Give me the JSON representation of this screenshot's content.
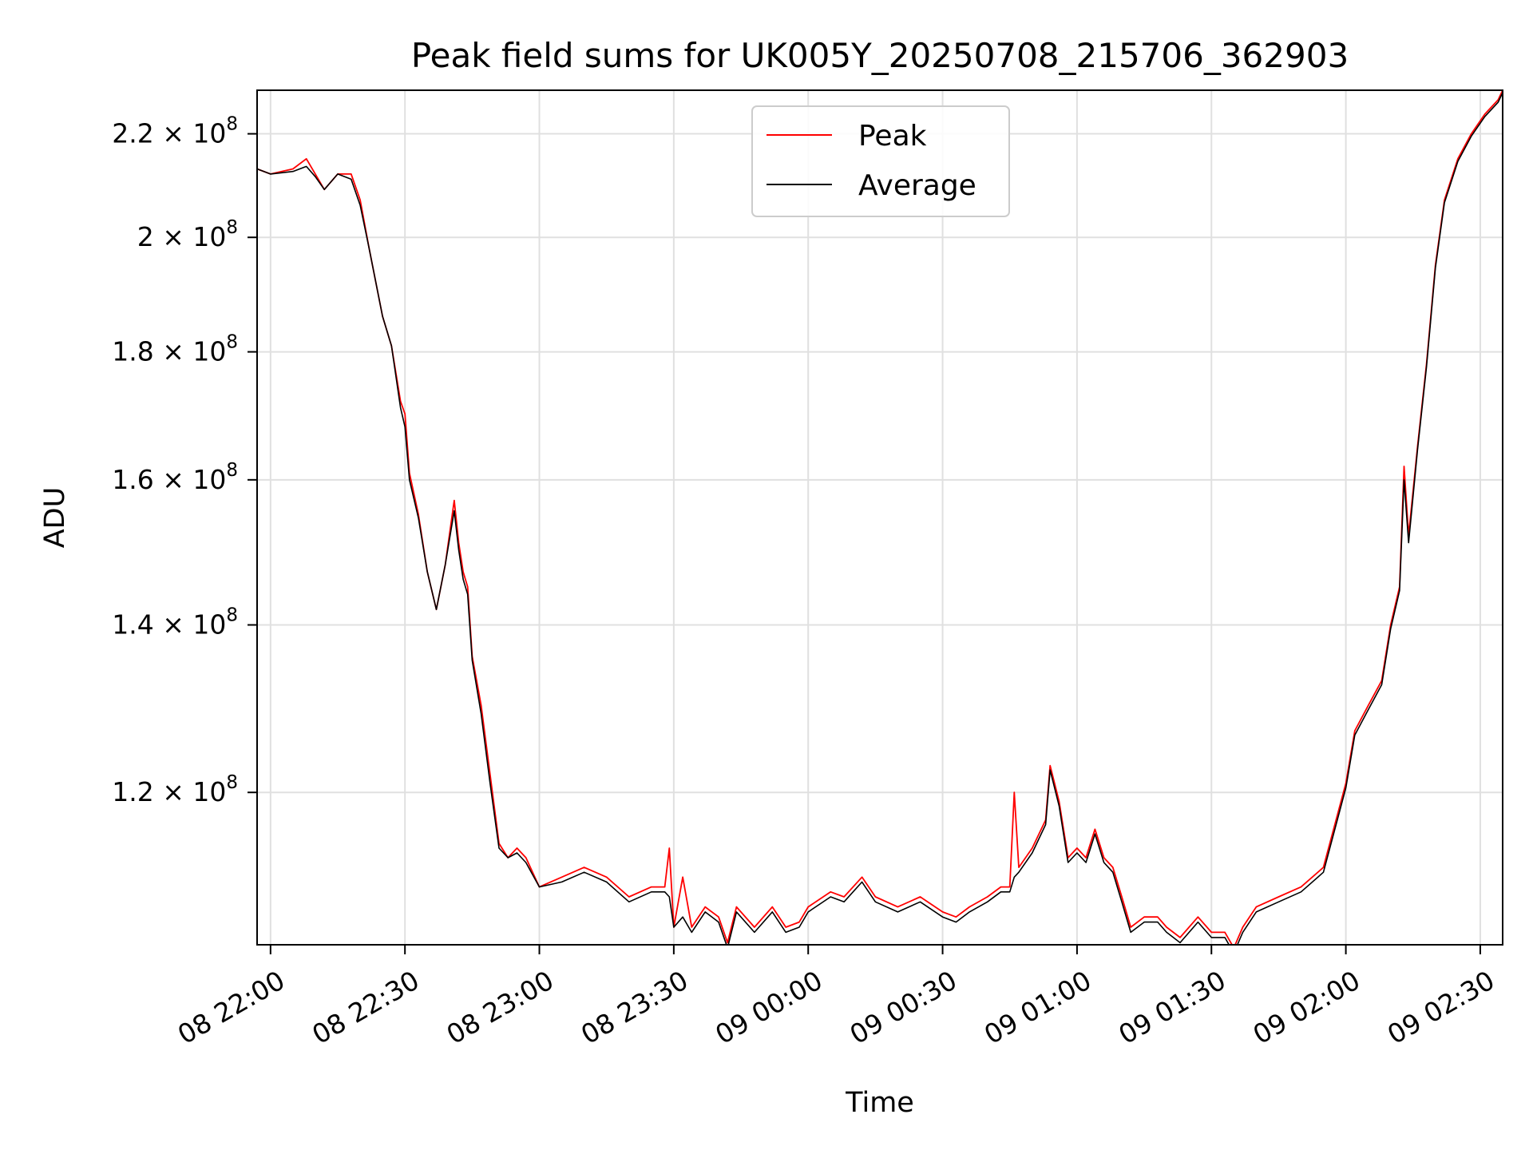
{
  "chart_data": {
    "type": "line",
    "title": "Peak field sums for UK005Y_20250708_215706_362903",
    "xlabel": "Time",
    "ylabel": "ADU",
    "yscale": "log",
    "grid": true,
    "legend_position": "top-center",
    "x_range": [
      "2025-07-08 21:57",
      "2025-07-09 02:35"
    ],
    "ylim": [
      104300000.0,
      229000000.0
    ],
    "x_ticks": [
      {
        "time": "2025-07-08 22:00",
        "label": "08 22:00"
      },
      {
        "time": "2025-07-08 22:30",
        "label": "08 22:30"
      },
      {
        "time": "2025-07-08 23:00",
        "label": "08 23:00"
      },
      {
        "time": "2025-07-08 23:30",
        "label": "08 23:30"
      },
      {
        "time": "2025-07-09 00:00",
        "label": "09 00:00"
      },
      {
        "time": "2025-07-09 00:30",
        "label": "09 00:30"
      },
      {
        "time": "2025-07-09 01:00",
        "label": "09 01:00"
      },
      {
        "time": "2025-07-09 01:30",
        "label": "09 01:30"
      },
      {
        "time": "2025-07-09 02:00",
        "label": "09 02:00"
      },
      {
        "time": "2025-07-09 02:30",
        "label": "09 02:30"
      }
    ],
    "y_ticks": [
      {
        "value": 120000000.0,
        "mantissa": "1.2",
        "exponent": "8"
      },
      {
        "value": 140000000.0,
        "mantissa": "1.4",
        "exponent": "8"
      },
      {
        "value": 160000000.0,
        "mantissa": "1.6",
        "exponent": "8"
      },
      {
        "value": 180000000.0,
        "mantissa": "1.8",
        "exponent": "8"
      },
      {
        "value": 200000000.0,
        "mantissa": "2",
        "exponent": "8"
      },
      {
        "value": 220000000.0,
        "mantissa": "2.2",
        "exponent": "8"
      }
    ],
    "series": [
      {
        "name": "Peak",
        "color": "#ff0000",
        "points": [
          [
            "2025-07-08 21:57",
            213000000.0
          ],
          [
            "2025-07-08 22:00",
            212000000.0
          ],
          [
            "2025-07-08 22:05",
            213000000.0
          ],
          [
            "2025-07-08 22:08",
            215000000.0
          ],
          [
            "2025-07-08 22:10",
            212000000.0
          ],
          [
            "2025-07-08 22:12",
            209000000.0
          ],
          [
            "2025-07-08 22:15",
            212000000.0
          ],
          [
            "2025-07-08 22:18",
            212000000.0
          ],
          [
            "2025-07-08 22:20",
            207000000.0
          ],
          [
            "2025-07-08 22:22",
            198000000.0
          ],
          [
            "2025-07-08 22:25",
            186000000.0
          ],
          [
            "2025-07-08 22:27",
            181000000.0
          ],
          [
            "2025-07-08 22:29",
            172000000.0
          ],
          [
            "2025-07-08 22:30",
            170000000.0
          ],
          [
            "2025-07-08 22:31",
            161000000.0
          ],
          [
            "2025-07-08 22:33",
            155000000.0
          ],
          [
            "2025-07-08 22:35",
            147000000.0
          ],
          [
            "2025-07-08 22:37",
            142000000.0
          ],
          [
            "2025-07-08 22:39",
            148000000.0
          ],
          [
            "2025-07-08 22:41",
            157000000.0
          ],
          [
            "2025-07-08 22:42",
            151000000.0
          ],
          [
            "2025-07-08 22:43",
            147000000.0
          ],
          [
            "2025-07-08 22:44",
            145000000.0
          ],
          [
            "2025-07-08 22:45",
            136000000.0
          ],
          [
            "2025-07-08 22:47",
            130000000.0
          ],
          [
            "2025-07-08 22:49",
            122000000.0
          ],
          [
            "2025-07-08 22:51",
            114500000.0
          ],
          [
            "2025-07-08 22:53",
            113000000.0
          ],
          [
            "2025-07-08 22:55",
            114000000.0
          ],
          [
            "2025-07-08 22:57",
            113000000.0
          ],
          [
            "2025-07-08 23:00",
            110000000.0
          ],
          [
            "2025-07-08 23:05",
            111000000.0
          ],
          [
            "2025-07-08 23:10",
            112000000.0
          ],
          [
            "2025-07-08 23:15",
            111000000.0
          ],
          [
            "2025-07-08 23:20",
            109000000.0
          ],
          [
            "2025-07-08 23:25",
            110000000.0
          ],
          [
            "2025-07-08 23:28",
            110000000.0
          ],
          [
            "2025-07-08 23:29",
            114000000.0
          ],
          [
            "2025-07-08 23:30",
            106000000.0
          ],
          [
            "2025-07-08 23:32",
            111000000.0
          ],
          [
            "2025-07-08 23:34",
            106000000.0
          ],
          [
            "2025-07-08 23:37",
            108000000.0
          ],
          [
            "2025-07-08 23:40",
            107000000.0
          ],
          [
            "2025-07-08 23:42",
            104500000.0
          ],
          [
            "2025-07-08 23:44",
            108000000.0
          ],
          [
            "2025-07-08 23:48",
            106000000.0
          ],
          [
            "2025-07-08 23:52",
            108000000.0
          ],
          [
            "2025-07-08 23:55",
            106000000.0
          ],
          [
            "2025-07-08 23:58",
            106500000.0
          ],
          [
            "2025-07-09 00:00",
            108000000.0
          ],
          [
            "2025-07-09 00:05",
            109500000.0
          ],
          [
            "2025-07-09 00:08",
            109000000.0
          ],
          [
            "2025-07-09 00:12",
            111000000.0
          ],
          [
            "2025-07-09 00:15",
            109000000.0
          ],
          [
            "2025-07-09 00:20",
            108000000.0
          ],
          [
            "2025-07-09 00:25",
            109000000.0
          ],
          [
            "2025-07-09 00:30",
            107500000.0
          ],
          [
            "2025-07-09 00:33",
            107000000.0
          ],
          [
            "2025-07-09 00:36",
            108000000.0
          ],
          [
            "2025-07-09 00:40",
            109000000.0
          ],
          [
            "2025-07-09 00:43",
            110000000.0
          ],
          [
            "2025-07-09 00:45",
            110000000.0
          ],
          [
            "2025-07-09 00:46",
            120000000.0
          ],
          [
            "2025-07-09 00:47",
            112000000.0
          ],
          [
            "2025-07-09 00:50",
            114000000.0
          ],
          [
            "2025-07-09 00:53",
            117000000.0
          ],
          [
            "2025-07-09 00:54",
            123000000.0
          ],
          [
            "2025-07-09 00:56",
            119000000.0
          ],
          [
            "2025-07-09 00:58",
            113000000.0
          ],
          [
            "2025-07-09 01:00",
            114000000.0
          ],
          [
            "2025-07-09 01:02",
            113000000.0
          ],
          [
            "2025-07-09 01:04",
            116000000.0
          ],
          [
            "2025-07-09 01:06",
            113000000.0
          ],
          [
            "2025-07-09 01:08",
            112000000.0
          ],
          [
            "2025-07-09 01:10",
            109000000.0
          ],
          [
            "2025-07-09 01:12",
            106000000.0
          ],
          [
            "2025-07-09 01:15",
            107000000.0
          ],
          [
            "2025-07-09 01:18",
            107000000.0
          ],
          [
            "2025-07-09 01:20",
            106000000.0
          ],
          [
            "2025-07-09 01:23",
            105000000.0
          ],
          [
            "2025-07-09 01:27",
            107000000.0
          ],
          [
            "2025-07-09 01:30",
            105500000.0
          ],
          [
            "2025-07-09 01:33",
            105500000.0
          ],
          [
            "2025-07-09 01:35",
            104000000.0
          ],
          [
            "2025-07-09 01:37",
            106000000.0
          ],
          [
            "2025-07-09 01:40",
            108000000.0
          ],
          [
            "2025-07-09 01:45",
            109000000.0
          ],
          [
            "2025-07-09 01:50",
            110000000.0
          ],
          [
            "2025-07-09 01:55",
            112000000.0
          ],
          [
            "2025-07-09 02:00",
            121000000.0
          ],
          [
            "2025-07-09 02:02",
            127000000.0
          ],
          [
            "2025-07-09 02:05",
            130000000.0
          ],
          [
            "2025-07-09 02:08",
            133000000.0
          ],
          [
            "2025-07-09 02:10",
            140000000.0
          ],
          [
            "2025-07-09 02:12",
            145000000.0
          ],
          [
            "2025-07-09 02:13",
            162000000.0
          ],
          [
            "2025-07-09 02:14",
            152000000.0
          ],
          [
            "2025-07-09 02:16",
            165000000.0
          ],
          [
            "2025-07-09 02:18",
            178000000.0
          ],
          [
            "2025-07-09 02:20",
            195000000.0
          ],
          [
            "2025-07-09 02:22",
            207000000.0
          ],
          [
            "2025-07-09 02:25",
            215000000.0
          ],
          [
            "2025-07-09 02:28",
            220000000.0
          ],
          [
            "2025-07-09 02:31",
            224000000.0
          ],
          [
            "2025-07-09 02:34",
            227000000.0
          ],
          [
            "2025-07-09 02:35",
            229000000.0
          ]
        ]
      },
      {
        "name": "Average",
        "color": "#000000",
        "points": [
          [
            "2025-07-08 21:57",
            213000000.0
          ],
          [
            "2025-07-08 22:00",
            212000000.0
          ],
          [
            "2025-07-08 22:05",
            212500000.0
          ],
          [
            "2025-07-08 22:08",
            213500000.0
          ],
          [
            "2025-07-08 22:10",
            211500000.0
          ],
          [
            "2025-07-08 22:12",
            209000000.0
          ],
          [
            "2025-07-08 22:15",
            212000000.0
          ],
          [
            "2025-07-08 22:18",
            211000000.0
          ],
          [
            "2025-07-08 22:20",
            206000000.0
          ],
          [
            "2025-07-08 22:22",
            198000000.0
          ],
          [
            "2025-07-08 22:25",
            186000000.0
          ],
          [
            "2025-07-08 22:27",
            181000000.0
          ],
          [
            "2025-07-08 22:29",
            171000000.0
          ],
          [
            "2025-07-08 22:30",
            168000000.0
          ],
          [
            "2025-07-08 22:31",
            160000000.0
          ],
          [
            "2025-07-08 22:33",
            154500000.0
          ],
          [
            "2025-07-08 22:35",
            147000000.0
          ],
          [
            "2025-07-08 22:37",
            142000000.0
          ],
          [
            "2025-07-08 22:39",
            148000000.0
          ],
          [
            "2025-07-08 22:41",
            155500000.0
          ],
          [
            "2025-07-08 22:42",
            150000000.0
          ],
          [
            "2025-07-08 22:43",
            146000000.0
          ],
          [
            "2025-07-08 22:44",
            144000000.0
          ],
          [
            "2025-07-08 22:45",
            135500000.0
          ],
          [
            "2025-07-08 22:47",
            129000000.0
          ],
          [
            "2025-07-08 22:49",
            121000000.0
          ],
          [
            "2025-07-08 22:51",
            114000000.0
          ],
          [
            "2025-07-08 22:53",
            113000000.0
          ],
          [
            "2025-07-08 22:55",
            113500000.0
          ],
          [
            "2025-07-08 22:57",
            112500000.0
          ],
          [
            "2025-07-08 23:00",
            110000000.0
          ],
          [
            "2025-07-08 23:05",
            110500000.0
          ],
          [
            "2025-07-08 23:10",
            111500000.0
          ],
          [
            "2025-07-08 23:15",
            110500000.0
          ],
          [
            "2025-07-08 23:20",
            108500000.0
          ],
          [
            "2025-07-08 23:25",
            109500000.0
          ],
          [
            "2025-07-08 23:28",
            109500000.0
          ],
          [
            "2025-07-08 23:29",
            109000000.0
          ],
          [
            "2025-07-08 23:30",
            106000000.0
          ],
          [
            "2025-07-08 23:32",
            107000000.0
          ],
          [
            "2025-07-08 23:34",
            105500000.0
          ],
          [
            "2025-07-08 23:37",
            107500000.0
          ],
          [
            "2025-07-08 23:40",
            106500000.0
          ],
          [
            "2025-07-08 23:42",
            104000000.0
          ],
          [
            "2025-07-08 23:44",
            107500000.0
          ],
          [
            "2025-07-08 23:48",
            105500000.0
          ],
          [
            "2025-07-08 23:52",
            107500000.0
          ],
          [
            "2025-07-08 23:55",
            105500000.0
          ],
          [
            "2025-07-08 23:58",
            106000000.0
          ],
          [
            "2025-07-09 00:00",
            107500000.0
          ],
          [
            "2025-07-09 00:05",
            109000000.0
          ],
          [
            "2025-07-09 00:08",
            108500000.0
          ],
          [
            "2025-07-09 00:12",
            110500000.0
          ],
          [
            "2025-07-09 00:15",
            108500000.0
          ],
          [
            "2025-07-09 00:20",
            107500000.0
          ],
          [
            "2025-07-09 00:25",
            108500000.0
          ],
          [
            "2025-07-09 00:30",
            107000000.0
          ],
          [
            "2025-07-09 00:33",
            106500000.0
          ],
          [
            "2025-07-09 00:36",
            107500000.0
          ],
          [
            "2025-07-09 00:40",
            108500000.0
          ],
          [
            "2025-07-09 00:43",
            109500000.0
          ],
          [
            "2025-07-09 00:45",
            109500000.0
          ],
          [
            "2025-07-09 00:46",
            111000000.0
          ],
          [
            "2025-07-09 00:47",
            111500000.0
          ],
          [
            "2025-07-09 00:50",
            113500000.0
          ],
          [
            "2025-07-09 00:53",
            116500000.0
          ],
          [
            "2025-07-09 00:54",
            122500000.0
          ],
          [
            "2025-07-09 00:56",
            118500000.0
          ],
          [
            "2025-07-09 00:58",
            112500000.0
          ],
          [
            "2025-07-09 01:00",
            113500000.0
          ],
          [
            "2025-07-09 01:02",
            112500000.0
          ],
          [
            "2025-07-09 01:04",
            115500000.0
          ],
          [
            "2025-07-09 01:06",
            112500000.0
          ],
          [
            "2025-07-09 01:08",
            111500000.0
          ],
          [
            "2025-07-09 01:10",
            108500000.0
          ],
          [
            "2025-07-09 01:12",
            105500000.0
          ],
          [
            "2025-07-09 01:15",
            106500000.0
          ],
          [
            "2025-07-09 01:18",
            106500000.0
          ],
          [
            "2025-07-09 01:20",
            105500000.0
          ],
          [
            "2025-07-09 01:23",
            104500000.0
          ],
          [
            "2025-07-09 01:27",
            106500000.0
          ],
          [
            "2025-07-09 01:30",
            105000000.0
          ],
          [
            "2025-07-09 01:33",
            105000000.0
          ],
          [
            "2025-07-09 01:35",
            103500000.0
          ],
          [
            "2025-07-09 01:37",
            105500000.0
          ],
          [
            "2025-07-09 01:40",
            107500000.0
          ],
          [
            "2025-07-09 01:45",
            108500000.0
          ],
          [
            "2025-07-09 01:50",
            109500000.0
          ],
          [
            "2025-07-09 01:55",
            111500000.0
          ],
          [
            "2025-07-09 02:00",
            120500000.0
          ],
          [
            "2025-07-09 02:02",
            126500000.0
          ],
          [
            "2025-07-09 02:05",
            129500000.0
          ],
          [
            "2025-07-09 02:08",
            132500000.0
          ],
          [
            "2025-07-09 02:10",
            139500000.0
          ],
          [
            "2025-07-09 02:12",
            144500000.0
          ],
          [
            "2025-07-09 02:13",
            160000000.0
          ],
          [
            "2025-07-09 02:14",
            151000000.0
          ],
          [
            "2025-07-09 02:16",
            164500000.0
          ],
          [
            "2025-07-09 02:18",
            177500000.0
          ],
          [
            "2025-07-09 02:20",
            194500000.0
          ],
          [
            "2025-07-09 02:22",
            206500000.0
          ],
          [
            "2025-07-09 02:25",
            214500000.0
          ],
          [
            "2025-07-09 02:28",
            219500000.0
          ],
          [
            "2025-07-09 02:31",
            223500000.0
          ],
          [
            "2025-07-09 02:34",
            226500000.0
          ],
          [
            "2025-07-09 02:35",
            228500000.0
          ]
        ]
      }
    ]
  }
}
